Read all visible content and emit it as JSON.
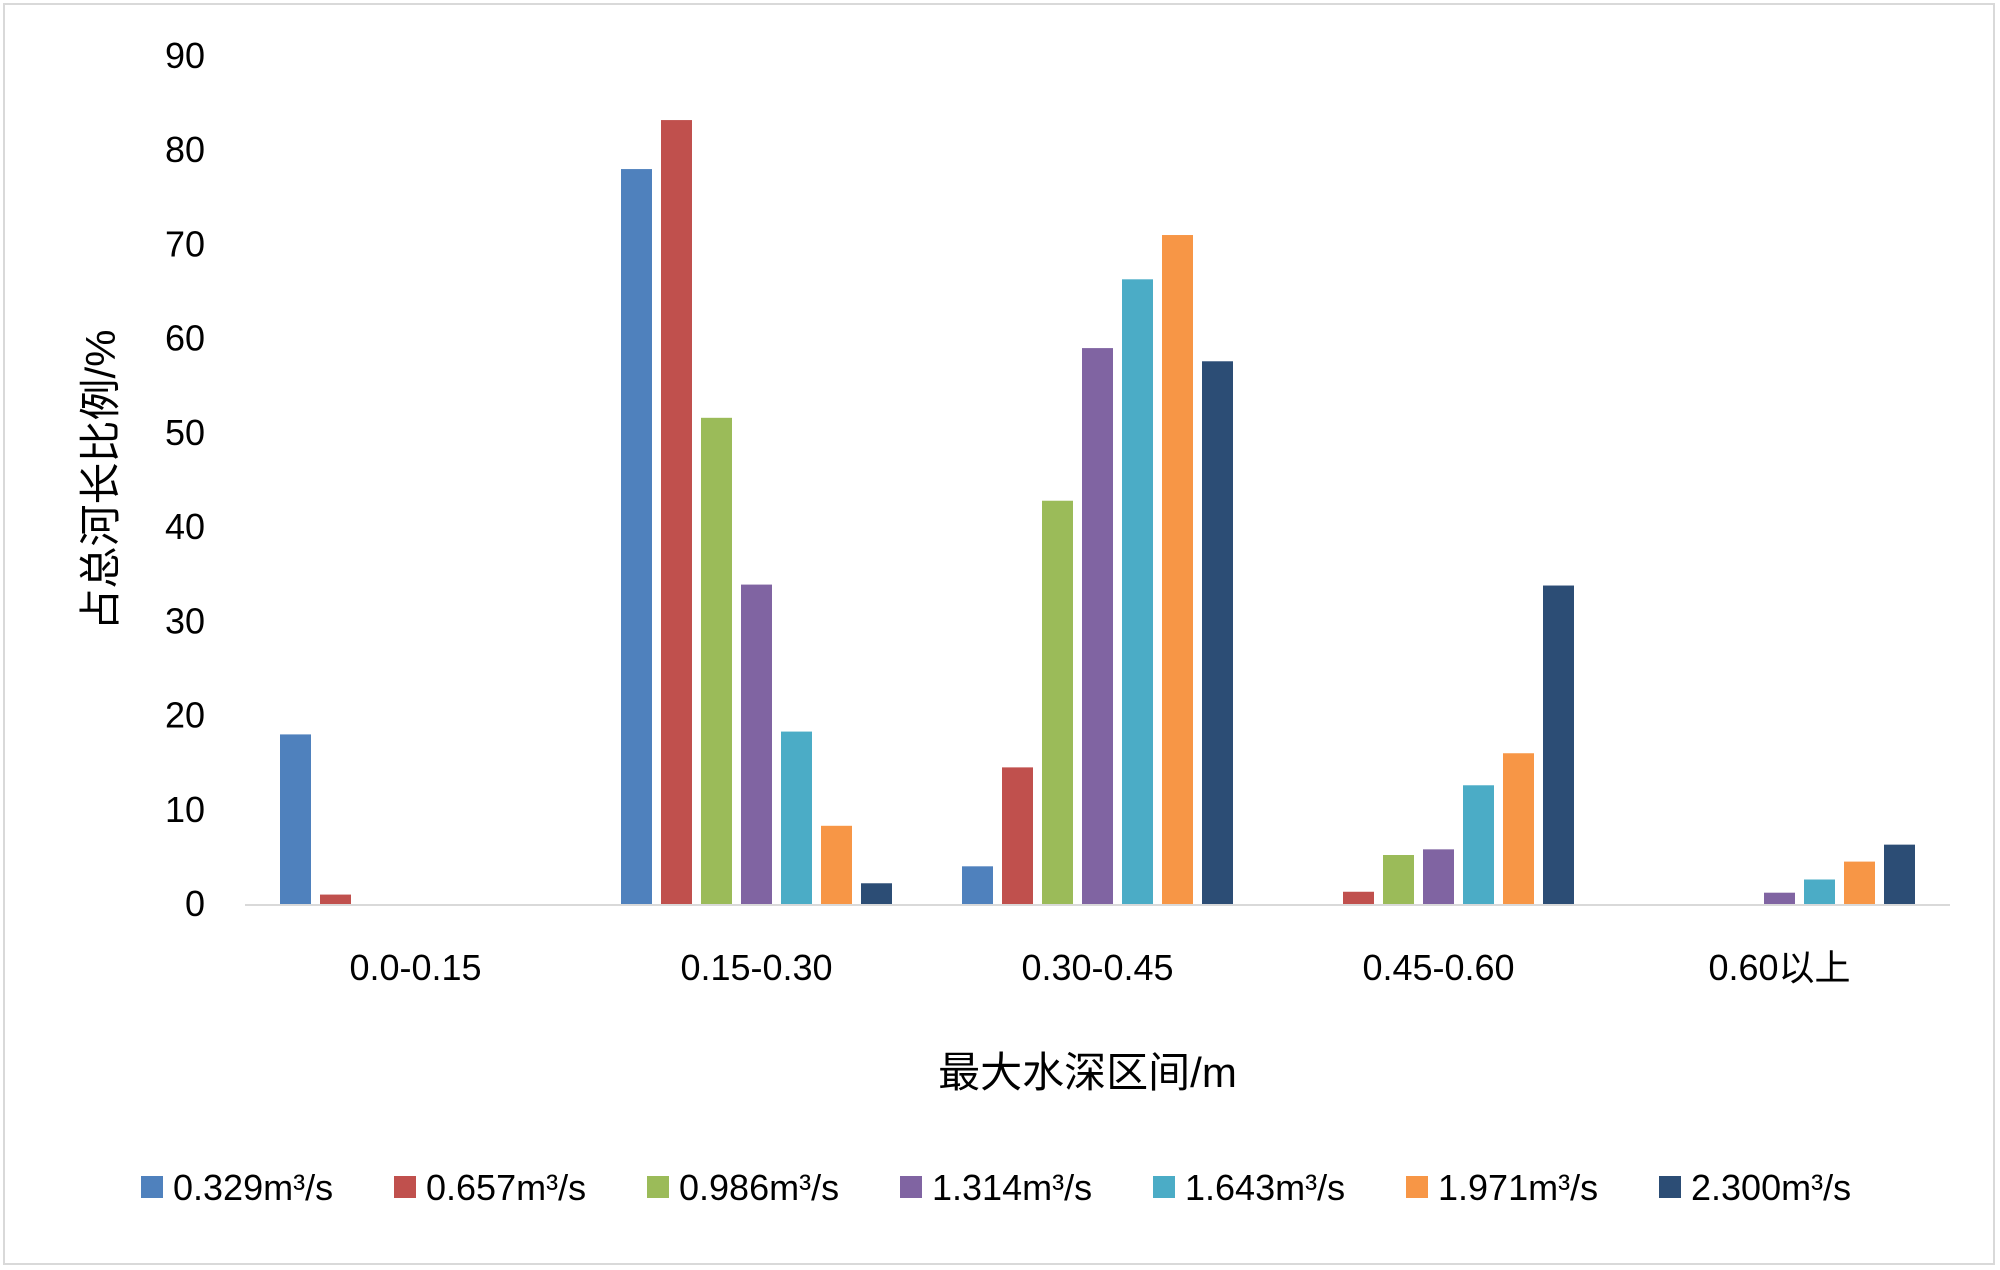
{
  "chart_data": {
    "type": "bar",
    "title": "",
    "xlabel": "最大水深区间/m",
    "ylabel": "占总河长比例/%",
    "ylim": [
      0,
      90
    ],
    "yticks": [
      "0",
      "10",
      "20",
      "30",
      "40",
      "50",
      "60",
      "70",
      "80",
      "90"
    ],
    "grid": false,
    "legend_position": "bottom",
    "categories": [
      "0.0-0.15",
      "0.15-0.30",
      "0.30-0.45",
      "0.45-0.60",
      "0.60以上"
    ],
    "series": [
      {
        "name": "0.329m³/s",
        "color": "#4f81bd",
        "values": [
          18.0,
          78.0,
          4.0,
          0.0,
          0.0
        ]
      },
      {
        "name": "0.657m³/s",
        "color": "#c0504d",
        "values": [
          1.0,
          83.2,
          14.5,
          1.3,
          0.0
        ]
      },
      {
        "name": "0.986m³/s",
        "color": "#9bbb59",
        "values": [
          0.0,
          51.6,
          42.8,
          5.2,
          0.0
        ]
      },
      {
        "name": "1.314m³/s",
        "color": "#8064a2",
        "values": [
          0.0,
          33.9,
          59.0,
          5.8,
          1.2
        ]
      },
      {
        "name": "1.643m³/s",
        "color": "#4bacc6",
        "values": [
          0.0,
          18.3,
          66.3,
          12.6,
          2.6
        ]
      },
      {
        "name": "1.971m³/s",
        "color": "#f79646",
        "values": [
          0.0,
          8.3,
          71.0,
          16.0,
          4.5
        ]
      },
      {
        "name": "2.300m³/s",
        "color": "#2c4d75",
        "values": [
          0.0,
          2.2,
          57.6,
          33.8,
          6.3
        ]
      }
    ]
  }
}
